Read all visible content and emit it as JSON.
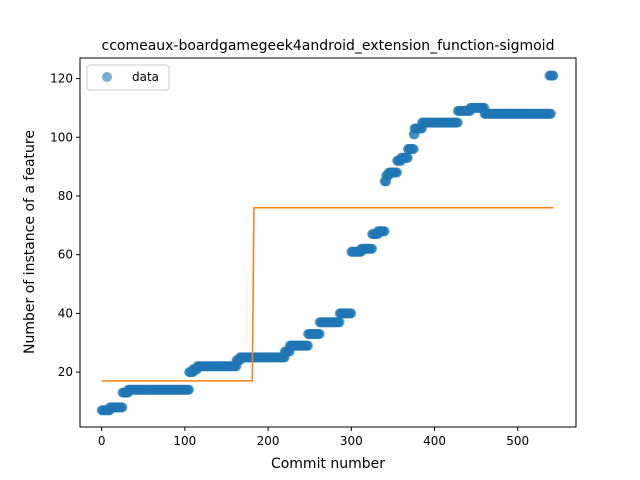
{
  "chart_data": {
    "type": "scatter",
    "title": "ccomeaux-boardgamegeek4android_extension_function-sigmoid",
    "xlabel": "Commit number",
    "ylabel": "Number of instance of a feature",
    "xlim": [
      -26,
      570
    ],
    "ylim": [
      1.3,
      127
    ],
    "xticks": [
      0,
      100,
      200,
      300,
      400,
      500
    ],
    "yticks": [
      20,
      40,
      60,
      80,
      100,
      120
    ],
    "grid": false,
    "legend": {
      "placement": "top-left",
      "entries": [
        "data"
      ]
    },
    "colors": {
      "data": "#1f77b4",
      "fit": "#ff7f0e"
    },
    "series": [
      {
        "name": "data",
        "kind": "scatter",
        "segments": [
          {
            "x_start": 0,
            "x_end": 10,
            "y": 7
          },
          {
            "x_start": 10,
            "x_end": 25,
            "y": 8
          },
          {
            "x_start": 25,
            "x_end": 32,
            "y": 13
          },
          {
            "x_start": 32,
            "x_end": 105,
            "y": 14
          },
          {
            "x_start": 105,
            "x_end": 110,
            "y": 20
          },
          {
            "x_start": 110,
            "x_end": 115,
            "y": 21
          },
          {
            "x_start": 115,
            "x_end": 162,
            "y": 22
          },
          {
            "x_start": 162,
            "x_end": 166,
            "y": 24
          },
          {
            "x_start": 166,
            "x_end": 220,
            "y": 25
          },
          {
            "x_start": 220,
            "x_end": 226,
            "y": 27
          },
          {
            "x_start": 226,
            "x_end": 248,
            "y": 29
          },
          {
            "x_start": 248,
            "x_end": 262,
            "y": 33
          },
          {
            "x_start": 262,
            "x_end": 286,
            "y": 37
          },
          {
            "x_start": 286,
            "x_end": 300,
            "y": 40
          },
          {
            "x_start": 300,
            "x_end": 312,
            "y": 61
          },
          {
            "x_start": 312,
            "x_end": 325,
            "y": 62
          },
          {
            "x_start": 325,
            "x_end": 332,
            "y": 67
          },
          {
            "x_start": 332,
            "x_end": 340,
            "y": 68
          },
          {
            "x_start": 340,
            "x_end": 342,
            "y": 85
          },
          {
            "x_start": 342,
            "x_end": 345,
            "y": 87
          },
          {
            "x_start": 345,
            "x_end": 355,
            "y": 88
          },
          {
            "x_start": 355,
            "x_end": 360,
            "y": 92
          },
          {
            "x_start": 360,
            "x_end": 368,
            "y": 93
          },
          {
            "x_start": 368,
            "x_end": 375,
            "y": 96
          },
          {
            "x_start": 375,
            "x_end": 376,
            "y": 101
          },
          {
            "x_start": 376,
            "x_end": 385,
            "y": 103
          },
          {
            "x_start": 385,
            "x_end": 428,
            "y": 105
          },
          {
            "x_start": 428,
            "x_end": 443,
            "y": 109
          },
          {
            "x_start": 443,
            "x_end": 460,
            "y": 110
          },
          {
            "x_start": 460,
            "x_end": 540,
            "y": 108
          },
          {
            "x_start": 538,
            "x_end": 543,
            "y": 121
          }
        ]
      },
      {
        "kind": "line",
        "points": [
          [
            0,
            17
          ],
          [
            181,
            17
          ],
          [
            183,
            76
          ],
          [
            543,
            76
          ]
        ]
      }
    ]
  }
}
